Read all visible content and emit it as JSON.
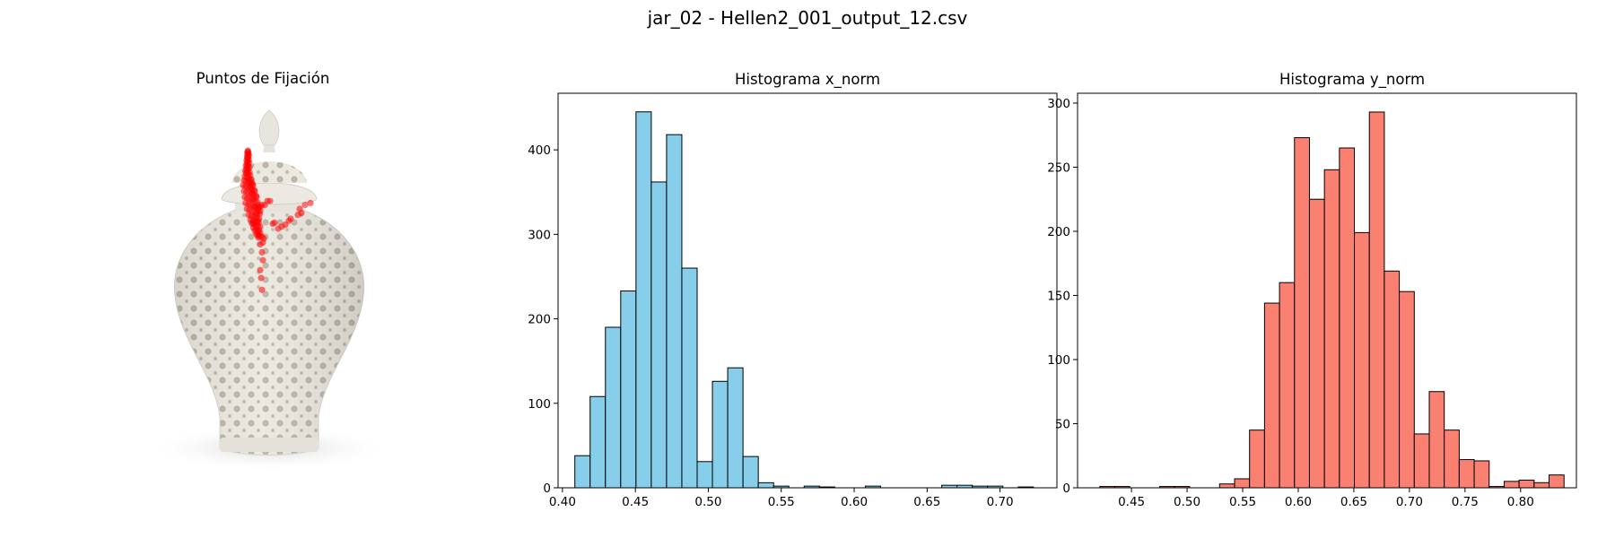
{
  "suptitle": "jar_02 - Hellen2_001_output_12.csv",
  "image_panel": {
    "title": "Puntos de Fijación",
    "marker_color": "#ff0000",
    "fixations": [
      [
        0.431,
        0.055
      ],
      [
        0.433,
        0.06
      ],
      [
        0.428,
        0.065
      ],
      [
        0.435,
        0.07
      ],
      [
        0.43,
        0.075
      ],
      [
        0.437,
        0.08
      ],
      [
        0.427,
        0.085
      ],
      [
        0.432,
        0.09
      ],
      [
        0.429,
        0.095
      ],
      [
        0.436,
        0.1
      ],
      [
        0.424,
        0.105
      ],
      [
        0.431,
        0.11
      ],
      [
        0.438,
        0.115
      ],
      [
        0.426,
        0.12
      ],
      [
        0.433,
        0.125
      ],
      [
        0.42,
        0.13
      ],
      [
        0.429,
        0.135
      ],
      [
        0.44,
        0.14
      ],
      [
        0.424,
        0.145
      ],
      [
        0.434,
        0.15
      ],
      [
        0.418,
        0.155
      ],
      [
        0.428,
        0.16
      ],
      [
        0.44,
        0.165
      ],
      [
        0.422,
        0.17
      ],
      [
        0.432,
        0.175
      ],
      [
        0.444,
        0.18
      ],
      [
        0.415,
        0.185
      ],
      [
        0.426,
        0.19
      ],
      [
        0.438,
        0.195
      ],
      [
        0.45,
        0.2
      ],
      [
        0.41,
        0.205
      ],
      [
        0.422,
        0.21
      ],
      [
        0.434,
        0.215
      ],
      [
        0.447,
        0.22
      ],
      [
        0.458,
        0.225
      ],
      [
        0.405,
        0.23
      ],
      [
        0.418,
        0.235
      ],
      [
        0.43,
        0.24
      ],
      [
        0.443,
        0.245
      ],
      [
        0.455,
        0.25
      ],
      [
        0.466,
        0.255
      ],
      [
        0.41,
        0.26
      ],
      [
        0.424,
        0.265
      ],
      [
        0.438,
        0.27
      ],
      [
        0.452,
        0.275
      ],
      [
        0.465,
        0.28
      ],
      [
        0.478,
        0.285
      ],
      [
        0.414,
        0.29
      ],
      [
        0.428,
        0.295
      ],
      [
        0.442,
        0.3
      ],
      [
        0.456,
        0.305
      ],
      [
        0.47,
        0.31
      ],
      [
        0.484,
        0.315
      ],
      [
        0.418,
        0.32
      ],
      [
        0.434,
        0.325
      ],
      [
        0.448,
        0.33
      ],
      [
        0.462,
        0.335
      ],
      [
        0.476,
        0.34
      ],
      [
        0.49,
        0.345
      ],
      [
        0.426,
        0.35
      ],
      [
        0.44,
        0.355
      ],
      [
        0.455,
        0.36
      ],
      [
        0.47,
        0.365
      ],
      [
        0.484,
        0.37
      ],
      [
        0.498,
        0.375
      ],
      [
        0.435,
        0.38
      ],
      [
        0.45,
        0.385
      ],
      [
        0.465,
        0.39
      ],
      [
        0.48,
        0.395
      ],
      [
        0.494,
        0.4
      ],
      [
        0.446,
        0.405
      ],
      [
        0.462,
        0.41
      ],
      [
        0.478,
        0.415
      ],
      [
        0.492,
        0.42
      ],
      [
        0.455,
        0.425
      ],
      [
        0.47,
        0.43
      ],
      [
        0.486,
        0.435
      ],
      [
        0.5,
        0.44
      ],
      [
        0.462,
        0.445
      ],
      [
        0.478,
        0.45
      ],
      [
        0.494,
        0.455
      ],
      [
        0.47,
        0.46
      ],
      [
        0.486,
        0.465
      ],
      [
        0.5,
        0.47
      ],
      [
        0.478,
        0.475
      ],
      [
        0.494,
        0.48
      ],
      [
        0.485,
        0.485
      ],
      [
        0.498,
        0.49
      ],
      [
        0.49,
        0.495
      ],
      [
        0.44,
        0.21
      ],
      [
        0.452,
        0.215
      ],
      [
        0.46,
        0.23
      ],
      [
        0.445,
        0.24
      ],
      [
        0.47,
        0.26
      ],
      [
        0.455,
        0.27
      ],
      [
        0.48,
        0.29
      ],
      [
        0.46,
        0.3
      ],
      [
        0.49,
        0.33
      ],
      [
        0.47,
        0.34
      ],
      [
        0.5,
        0.36
      ],
      [
        0.475,
        0.38
      ],
      [
        0.488,
        0.41
      ],
      [
        0.463,
        0.42
      ],
      [
        0.54,
        0.31
      ],
      [
        0.555,
        0.31
      ],
      [
        0.51,
        0.33
      ],
      [
        0.526,
        0.33
      ],
      [
        0.5,
        0.34
      ],
      [
        0.49,
        0.355
      ],
      [
        0.58,
        0.42
      ],
      [
        0.57,
        0.425
      ],
      [
        0.6,
        0.45
      ],
      [
        0.62,
        0.44
      ],
      [
        0.64,
        0.43
      ],
      [
        0.66,
        0.41
      ],
      [
        0.67,
        0.4
      ],
      [
        0.71,
        0.38
      ],
      [
        0.73,
        0.37
      ],
      [
        0.72,
        0.35
      ],
      [
        0.75,
        0.33
      ],
      [
        0.78,
        0.32
      ],
      [
        0.51,
        0.49
      ],
      [
        0.52,
        0.5
      ],
      [
        0.515,
        0.52
      ],
      [
        0.5,
        0.53
      ],
      [
        0.51,
        0.57
      ],
      [
        0.515,
        0.61
      ],
      [
        0.5,
        0.66
      ],
      [
        0.505,
        0.7
      ],
      [
        0.51,
        0.76
      ]
    ]
  },
  "chart_data": [
    {
      "type": "bar",
      "title": "Histograma x_norm",
      "xlabel": "",
      "ylabel": "",
      "color": "#87ceeb",
      "edgecolor": "#000000",
      "bin_start": 0.4085,
      "bin_width": 0.01048,
      "values": [
        38,
        108,
        190,
        233,
        445,
        362,
        418,
        260,
        31,
        126,
        142,
        37,
        6,
        2,
        0,
        2,
        1,
        0,
        0,
        2,
        0,
        0,
        0,
        0,
        3,
        3,
        2,
        2,
        0,
        1
      ],
      "xlim": [
        0.397,
        0.739
      ],
      "ylim": [
        0,
        467
      ],
      "xticks": [
        0.4,
        0.45,
        0.5,
        0.55,
        0.6,
        0.65,
        0.7
      ],
      "xtick_labels": [
        "0.40",
        "0.45",
        "0.50",
        "0.55",
        "0.60",
        "0.65",
        "0.70"
      ],
      "yticks": [
        0,
        100,
        200,
        300,
        400
      ],
      "ytick_labels": [
        "0",
        "100",
        "200",
        "300",
        "400"
      ]
    },
    {
      "type": "bar",
      "title": "Histograma y_norm",
      "xlabel": "",
      "ylabel": "",
      "color": "#fa8072",
      "edgecolor": "#000000",
      "bin_start": 0.4215,
      "bin_width": 0.01347,
      "values": [
        1,
        1,
        0,
        0,
        1,
        1,
        0,
        0,
        3,
        7,
        45,
        144,
        160,
        273,
        225,
        248,
        265,
        199,
        293,
        169,
        153,
        42,
        75,
        45,
        22,
        21,
        1,
        5,
        6,
        4,
        10
      ],
      "xlim": [
        0.4015,
        0.8502
      ],
      "ylim": [
        0,
        307.65
      ],
      "xticks": [
        0.45,
        0.5,
        0.55,
        0.6,
        0.65,
        0.7,
        0.75,
        0.8
      ],
      "xtick_labels": [
        "0.45",
        "0.50",
        "0.55",
        "0.60",
        "0.65",
        "0.70",
        "0.75",
        "0.80"
      ],
      "yticks": [
        0,
        50,
        100,
        150,
        200,
        250,
        300
      ],
      "ytick_labels": [
        "0",
        "50",
        "100",
        "150",
        "200",
        "250",
        "300"
      ]
    }
  ]
}
